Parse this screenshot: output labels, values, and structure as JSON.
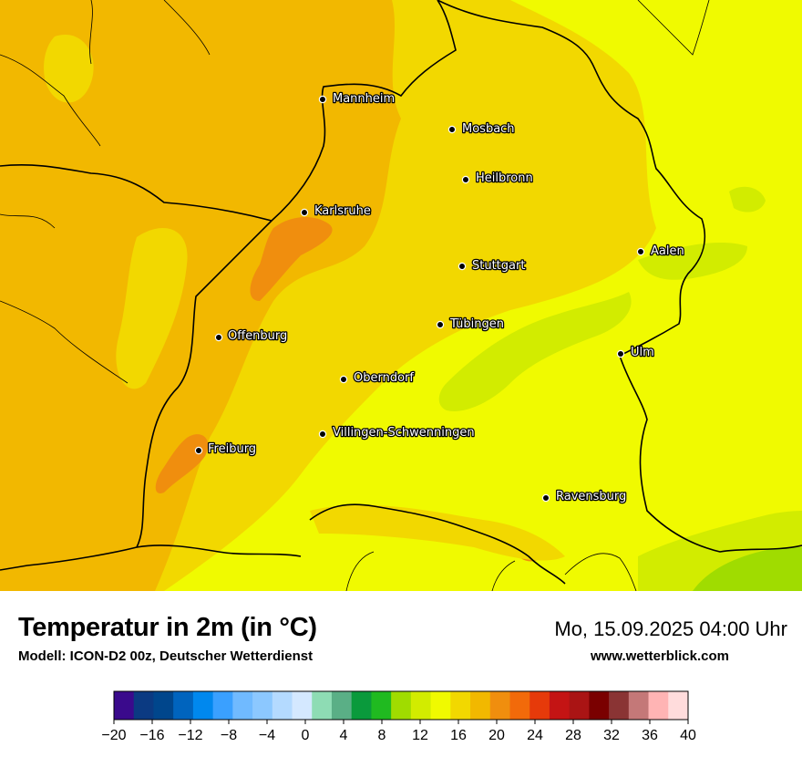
{
  "title": "Temperatur in 2m (in °C)",
  "subtitle": "Modell: ICON-D2 00z, Deutscher Wetterdienst",
  "datetime": "Mo, 15.09.2025 04:00 Uhr",
  "website": "www.wetterblick.com",
  "cities": [
    {
      "name": "Mannheim",
      "id": "mannheim"
    },
    {
      "name": "Mosbach",
      "id": "mosbach"
    },
    {
      "name": "Heilbronn",
      "id": "heilbronn"
    },
    {
      "name": "Karlsruhe",
      "id": "karlsruhe"
    },
    {
      "name": "Aalen",
      "id": "aalen"
    },
    {
      "name": "Stuttgart",
      "id": "stuttgart"
    },
    {
      "name": "Tübingen",
      "id": "tuebingen"
    },
    {
      "name": "Offenburg",
      "id": "offenburg"
    },
    {
      "name": "Ulm",
      "id": "ulm"
    },
    {
      "name": "Oberndorf",
      "id": "oberndorf"
    },
    {
      "name": "Villingen-Schwenningen",
      "id": "villingen"
    },
    {
      "name": "Freiburg",
      "id": "freiburg"
    },
    {
      "name": "Ravensburg",
      "id": "ravensburg"
    }
  ],
  "legend": {
    "min": -20,
    "max": 40,
    "step": 2,
    "tick_labels": [
      "−20",
      "−16",
      "−12",
      "−8",
      "−4",
      "0",
      "4",
      "8",
      "12",
      "16",
      "20",
      "24",
      "28",
      "32",
      "36",
      "40"
    ],
    "colors": [
      "#3a0a8c",
      "#0b3a82",
      "#00468c",
      "#0064be",
      "#0088ee",
      "#3aa0ff",
      "#70baff",
      "#8cc8ff",
      "#b4daff",
      "#d4e8ff",
      "#8edcb4",
      "#5aaf86",
      "#0a9a3c",
      "#20ba20",
      "#a0dc00",
      "#d2ec00",
      "#f0fa00",
      "#f2d800",
      "#f2b800",
      "#f08e0e",
      "#f26a0a",
      "#e63a0a",
      "#c41414",
      "#aa1414",
      "#7a0000",
      "#8a3434",
      "#c47878",
      "#ffb4b4",
      "#ffdcdc"
    ]
  }
}
